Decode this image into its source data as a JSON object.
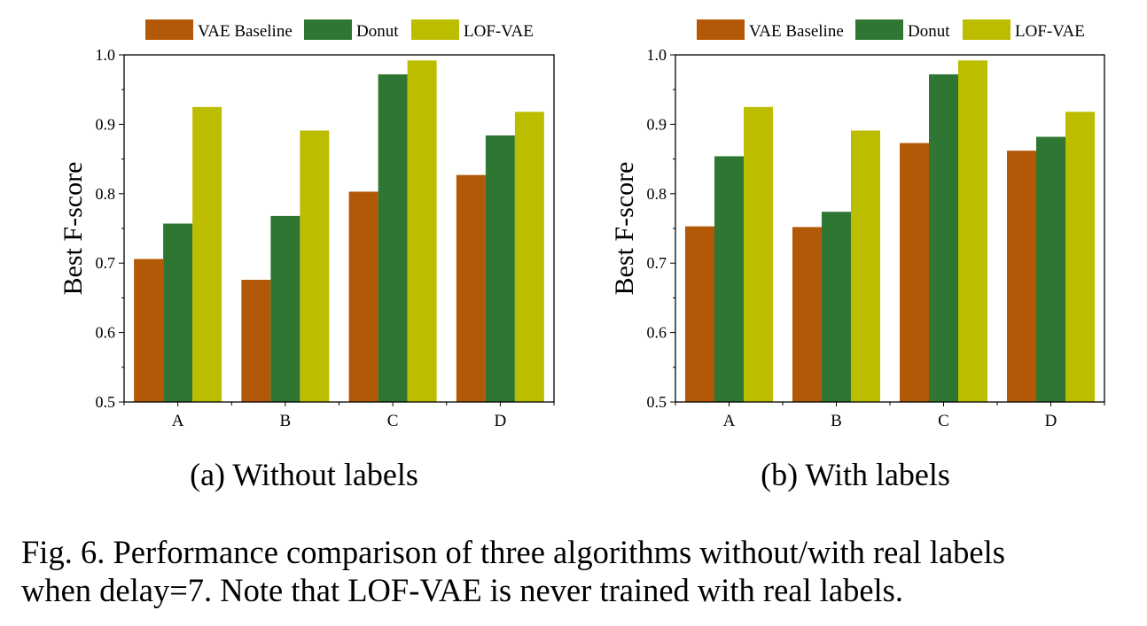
{
  "figure": {
    "caption_line1": "Fig. 6.  Performance comparison of three algorithms without/with real labels",
    "caption_line2": "when delay=7. Note that LOF-VAE is never trained with real labels."
  },
  "colors": {
    "VAE Baseline": "#b35806",
    "Donut": "#2e7631",
    "LOF-VAE": "#bdbd00"
  },
  "chart_data": [
    {
      "type": "bar",
      "title": "(a)  Without labels",
      "xlabel": "",
      "ylabel": "Best F-score",
      "ylim": [
        0.5,
        1.0
      ],
      "yticks": [
        "0.5",
        "0.6",
        "0.7",
        "0.8",
        "0.9",
        "1.0"
      ],
      "categories": [
        "A",
        "B",
        "C",
        "D"
      ],
      "legend": "top",
      "series": [
        {
          "name": "VAE Baseline",
          "values": [
            0.706,
            0.676,
            0.803,
            0.827
          ]
        },
        {
          "name": "Donut",
          "values": [
            0.757,
            0.768,
            0.972,
            0.884
          ]
        },
        {
          "name": "LOF-VAE",
          "values": [
            0.925,
            0.891,
            0.992,
            0.918
          ]
        }
      ]
    },
    {
      "type": "bar",
      "title": "(b)  With labels",
      "xlabel": "",
      "ylabel": "Best F-score",
      "ylim": [
        0.5,
        1.0
      ],
      "yticks": [
        "0.5",
        "0.6",
        "0.7",
        "0.8",
        "0.9",
        "1.0"
      ],
      "categories": [
        "A",
        "B",
        "C",
        "D"
      ],
      "legend": "top",
      "series": [
        {
          "name": "VAE Baseline",
          "values": [
            0.753,
            0.752,
            0.873,
            0.862
          ]
        },
        {
          "name": "Donut",
          "values": [
            0.854,
            0.774,
            0.972,
            0.882
          ]
        },
        {
          "name": "LOF-VAE",
          "values": [
            0.925,
            0.891,
            0.992,
            0.918
          ]
        }
      ]
    }
  ]
}
